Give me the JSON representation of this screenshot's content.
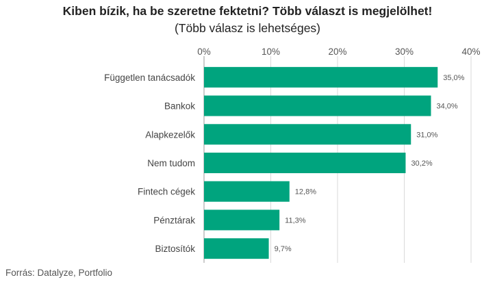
{
  "chart_data": {
    "type": "bar",
    "orientation": "horizontal",
    "title": "Kiben bízik, ha be szeretne fektetni? Több választ is megjelölhet!",
    "subtitle": "(Több válasz is lehetséges)",
    "categories": [
      "Független tanácsadók",
      "Bankok",
      "Alapkezelők",
      "Nem tudom",
      "Fintech cégek",
      "Pénztárak",
      "Biztosítók"
    ],
    "values": [
      35.0,
      34.0,
      31.0,
      30.2,
      12.8,
      11.3,
      9.7
    ],
    "value_labels": [
      "35,0%",
      "34,0%",
      "31,0%",
      "30,2%",
      "12,8%",
      "11,3%",
      "9,7%"
    ],
    "xlim": [
      0,
      40
    ],
    "xticks": [
      0,
      10,
      20,
      30,
      40
    ],
    "xtick_labels": [
      "0%",
      "10%",
      "20%",
      "30%",
      "40%"
    ],
    "x_axis_position": "top",
    "grid": true,
    "bar_color": "#00a47e",
    "source": "Forrás: Datalyze, Portfolio"
  }
}
